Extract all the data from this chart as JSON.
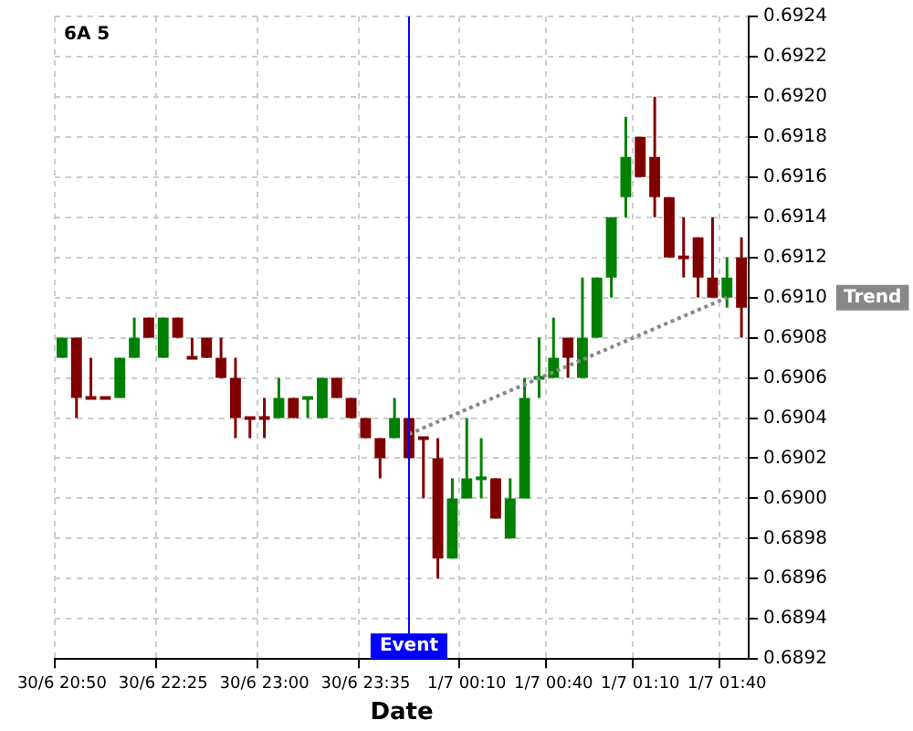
{
  "chart_data": {
    "type": "candlestick",
    "title": "6A 5",
    "xlabel": "Date",
    "categories": [
      "30/6 20:50",
      null,
      null,
      null,
      null,
      null,
      null,
      "30/6 22:25",
      null,
      null,
      null,
      null,
      null,
      null,
      "30/6 23:00",
      null,
      null,
      null,
      null,
      null,
      null,
      "30/6 23:35",
      null,
      null,
      null,
      null,
      null,
      null,
      "1/7 00:10",
      null,
      null,
      null,
      null,
      null,
      "1/7 00:40",
      null,
      null,
      null,
      null,
      null,
      "1/7 01:10",
      null,
      null,
      null,
      null,
      null,
      "1/7 01:40",
      null
    ],
    "ohlc": [
      [
        0.6907,
        0.6908,
        0.6907,
        0.6908
      ],
      [
        0.6908,
        0.6908,
        0.6904,
        0.6905
      ],
      [
        0.6905,
        0.6907,
        0.6905,
        0.6905
      ],
      [
        0.6905,
        0.6905,
        0.6905,
        0.6905
      ],
      [
        0.6905,
        0.6907,
        0.6905,
        0.6907
      ],
      [
        0.6907,
        0.6909,
        0.6907,
        0.6908
      ],
      [
        0.6909,
        0.6909,
        0.6908,
        0.6908
      ],
      [
        0.6907,
        0.6909,
        0.6907,
        0.6909
      ],
      [
        0.6909,
        0.6909,
        0.6908,
        0.6908
      ],
      [
        0.6907,
        0.6908,
        0.6907,
        0.6907
      ],
      [
        0.6908,
        0.6908,
        0.6907,
        0.6907
      ],
      [
        0.6907,
        0.6908,
        0.6906,
        0.6906
      ],
      [
        0.6906,
        0.6907,
        0.6903,
        0.6904
      ],
      [
        0.6904,
        0.6904,
        0.6903,
        0.6904
      ],
      [
        0.6904,
        0.6905,
        0.6903,
        0.6904
      ],
      [
        0.6904,
        0.6906,
        0.6904,
        0.6905
      ],
      [
        0.6905,
        0.6905,
        0.6904,
        0.6904
      ],
      [
        0.6905,
        0.6905,
        0.6904,
        0.6905
      ],
      [
        0.6904,
        0.6906,
        0.6904,
        0.6906
      ],
      [
        0.6906,
        0.6906,
        0.6905,
        0.6905
      ],
      [
        0.6905,
        0.6905,
        0.6904,
        0.6904
      ],
      [
        0.6904,
        0.6904,
        0.6903,
        0.6903
      ],
      [
        0.6903,
        0.6903,
        0.6901,
        0.6902
      ],
      [
        0.6903,
        0.6905,
        0.6903,
        0.6904
      ],
      [
        0.6904,
        0.6904,
        0.6902,
        0.6902
      ],
      [
        0.6903,
        0.6903,
        0.69,
        0.6903
      ],
      [
        0.6902,
        0.6903,
        0.6896,
        0.6897
      ],
      [
        0.6897,
        0.6901,
        0.6897,
        0.69
      ],
      [
        0.69,
        0.6904,
        0.69,
        0.6901
      ],
      [
        0.6901,
        0.6903,
        0.69,
        0.6901
      ],
      [
        0.6901,
        0.6901,
        0.6899,
        0.6899
      ],
      [
        0.6898,
        0.6901,
        0.6898,
        0.69
      ],
      [
        0.69,
        0.6906,
        0.69,
        0.6905
      ],
      [
        0.6906,
        0.6908,
        0.6905,
        0.6906
      ],
      [
        0.6906,
        0.6909,
        0.6906,
        0.6907
      ],
      [
        0.6908,
        0.6908,
        0.6906,
        0.6907
      ],
      [
        0.6906,
        0.6911,
        0.6906,
        0.6908
      ],
      [
        0.6908,
        0.6911,
        0.6908,
        0.6911
      ],
      [
        0.6911,
        0.6914,
        0.691,
        0.6914
      ],
      [
        0.6915,
        0.6919,
        0.6914,
        0.6917
      ],
      [
        0.6918,
        0.6918,
        0.6916,
        0.6916
      ],
      [
        0.6917,
        0.692,
        0.6914,
        0.6915
      ],
      [
        0.6915,
        0.6915,
        0.6912,
        0.6912
      ],
      [
        0.6912,
        0.6914,
        0.6911,
        0.6912
      ],
      [
        0.6913,
        0.6913,
        0.691,
        0.6911
      ],
      [
        0.6911,
        0.6914,
        0.691,
        0.691
      ],
      [
        0.691,
        0.6912,
        0.69095,
        0.6911
      ],
      [
        0.6912,
        0.6913,
        0.6908,
        0.69095
      ]
    ],
    "colors": [
      "#008000",
      "#800000",
      "#800000",
      "#800000",
      "#008000",
      "#008000",
      "#800000",
      "#008000",
      "#800000",
      "#800000",
      "#800000",
      "#800000",
      "#800000",
      "#800000",
      "#800000",
      "#008000",
      "#800000",
      "#008000",
      "#008000",
      "#800000",
      "#800000",
      "#800000",
      "#800000",
      "#008000",
      "#800000",
      "#800000",
      "#800000",
      "#008000",
      "#008000",
      "#008000",
      "#800000",
      "#008000",
      "#008000",
      "#008000",
      "#008000",
      "#800000",
      "#008000",
      "#008000",
      "#008000",
      "#008000",
      "#800000",
      "#800000",
      "#800000",
      "#800000",
      "#800000",
      "#800000",
      "#008000",
      "#800000"
    ],
    "series": [
      {
        "name": "Trend",
        "type": "line",
        "color": "#888888",
        "line_style": "dotted",
        "values": [
          null,
          null,
          null,
          null,
          null,
          null,
          null,
          null,
          null,
          null,
          null,
          null,
          null,
          null,
          null,
          null,
          null,
          null,
          null,
          null,
          null,
          null,
          null,
          null,
          0.69032,
          null,
          null,
          null,
          null,
          null,
          null,
          null,
          null,
          null,
          null,
          null,
          null,
          null,
          null,
          null,
          null,
          null,
          null,
          null,
          null,
          null,
          0.691,
          null
        ]
      }
    ],
    "ylim": [
      0.6892,
      0.6924
    ],
    "yticks": [
      {
        "value": 0.6892,
        "label": "0.6892"
      },
      {
        "value": 0.6894,
        "label": "0.6894"
      },
      {
        "value": 0.6896,
        "label": "0.6896"
      },
      {
        "value": 0.6898,
        "label": "0.6898"
      },
      {
        "value": 0.69,
        "label": "0.6900"
      },
      {
        "value": 0.6902,
        "label": "0.6902"
      },
      {
        "value": 0.6904,
        "label": "0.6904"
      },
      {
        "value": 0.6906,
        "label": "0.6906"
      },
      {
        "value": 0.6908,
        "label": "0.6908"
      },
      {
        "value": 0.691,
        "label": "0.6910"
      },
      {
        "value": 0.6912,
        "label": "0.6912"
      },
      {
        "value": 0.6914,
        "label": "0.6914"
      },
      {
        "value": 0.6916,
        "label": "0.6916"
      },
      {
        "value": 0.6918,
        "label": "0.6918"
      },
      {
        "value": 0.692,
        "label": "0.6920"
      },
      {
        "value": 0.6922,
        "label": "0.6922"
      },
      {
        "value": 0.6924,
        "label": "0.6924"
      }
    ],
    "annotations": [
      "Event"
    ],
    "grid": true
  }
}
